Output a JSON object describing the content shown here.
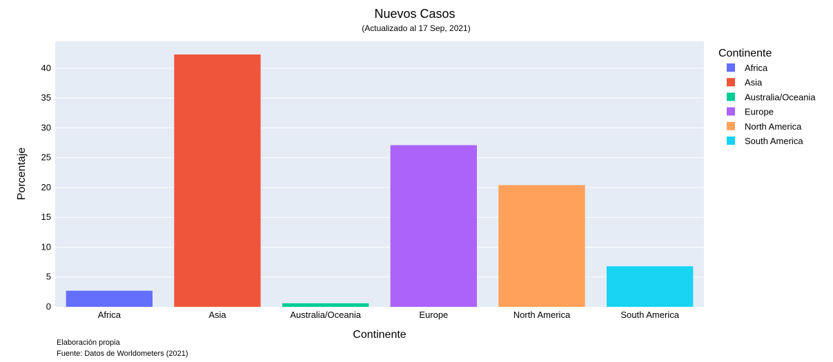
{
  "chart_data": {
    "type": "bar",
    "title": "Nuevos Casos",
    "subtitle": "(Actualizado al 17 Sep, 2021)",
    "xlabel": "Continente",
    "ylabel": "Porcentaje",
    "categories": [
      "Africa",
      "Asia",
      "Australia/Oceania",
      "Europe",
      "North America",
      "South America"
    ],
    "values": [
      2.7,
      42.3,
      0.6,
      27.1,
      20.4,
      6.8
    ],
    "colors": [
      "#636efa",
      "#EF553B",
      "#00cc96",
      "#ab63fa",
      "#FFA15A",
      "#19d3f3"
    ],
    "ylim": [
      0,
      44.5
    ],
    "yticks": [
      0,
      5,
      10,
      15,
      20,
      25,
      30,
      35,
      40
    ],
    "grid": true,
    "plot_background": "#E5ECF6",
    "legend": {
      "title": "Continente",
      "placement": "right",
      "entries": [
        "Africa",
        "Asia",
        "Australia/Oceania",
        "Europe",
        "North America",
        "South America"
      ]
    },
    "annotations": [
      "Elaboración propia",
      "Fuente: Datos de Worldometers (2021)"
    ]
  }
}
